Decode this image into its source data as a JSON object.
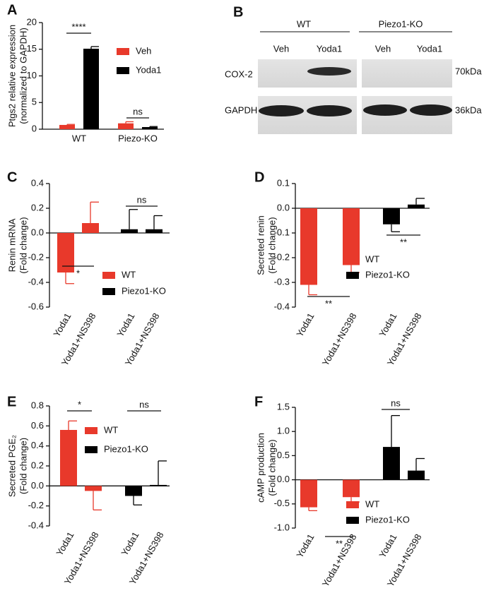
{
  "chart_data": [
    {
      "type": "bar",
      "label": "A",
      "ylabel": [
        "Ptgs2 relative expression",
        "(normalized to GAPDH)"
      ],
      "categories": [
        "WT",
        "Piezo-KO"
      ],
      "series": [
        {
          "name": "Veh",
          "color": "#e8392b",
          "values": [
            0.8,
            1.1
          ],
          "errors": [
            0.1,
            0.3
          ]
        },
        {
          "name": "Yoda1",
          "color": "#000000",
          "values": [
            15.1,
            0.4
          ],
          "errors": [
            0.4,
            0.1
          ]
        }
      ],
      "ylim": [
        0,
        20
      ],
      "yticks": [
        0,
        5,
        10,
        15,
        20
      ],
      "annotations": [
        "****",
        "ns"
      ],
      "legend": "right"
    },
    {
      "type": "bar",
      "label": "C",
      "ylabel": [
        "Renin mRNA",
        "(Fold change)"
      ],
      "categories": [
        "Yoda1",
        "Yoda1+NS398",
        "Yoda1",
        "Yoda1+NS398"
      ],
      "series": [
        {
          "name": "WT",
          "color": "#e8392b",
          "values": [
            -0.32,
            0.08,
            null,
            null
          ],
          "errors": [
            0.09,
            0.17,
            null,
            null
          ]
        },
        {
          "name": "Piezo1-KO",
          "color": "#000000",
          "values": [
            null,
            null,
            0.03,
            0.03
          ],
          "errors": [
            null,
            null,
            0.16,
            0.11
          ]
        }
      ],
      "ylim": [
        -0.6,
        0.4
      ],
      "yticks": [
        -0.6,
        -0.4,
        -0.2,
        {
          "value": 0,
          "label": "0.0"
        },
        0.2,
        0.4
      ],
      "annotations": [
        "*",
        "ns"
      ],
      "legend": "lower right"
    },
    {
      "type": "bar",
      "label": "D",
      "ylabel": [
        "Secreted renin",
        "(Fold change)"
      ],
      "categories": [
        "Yoda1",
        "Yoda1+NS398",
        "Yoda1",
        "Yoda1+NS398"
      ],
      "series": [
        {
          "name": "WT",
          "color": "#e8392b",
          "values": [
            -0.31,
            -0.23,
            null,
            null
          ],
          "errors": [
            0.04,
            0.03,
            null,
            null
          ]
        },
        {
          "name": "Piezo1-KO",
          "color": "#000000",
          "values": [
            null,
            null,
            -0.065,
            0.015
          ],
          "errors": [
            null,
            null,
            0.03,
            0.025
          ]
        }
      ],
      "ylim": [
        -0.4,
        0.1
      ],
      "yticks": [
        -0.4,
        -0.3,
        -0.2,
        -0.1,
        {
          "value": 0,
          "label": "0.0"
        },
        0.1
      ],
      "annotations": [
        "**",
        "**"
      ],
      "legend": "lower right"
    },
    {
      "type": "bar",
      "label": "E",
      "ylabel": [
        "Secreted PGE₂",
        "(Fold change)"
      ],
      "categories": [
        "Yoda1",
        "Yoda1+NS398",
        "Yoda1",
        "Yoda1+NS398"
      ],
      "series": [
        {
          "name": "WT",
          "color": "#e8392b",
          "values": [
            0.56,
            -0.05,
            null,
            null
          ],
          "errors": [
            0.09,
            0.19,
            null,
            null
          ]
        },
        {
          "name": "Piezo1-KO",
          "color": "#000000",
          "values": [
            null,
            null,
            -0.1,
            0.01
          ],
          "errors": [
            null,
            null,
            0.09,
            0.24
          ]
        }
      ],
      "ylim": [
        -0.4,
        0.8
      ],
      "yticks": [
        -0.4,
        -0.2,
        {
          "value": 0,
          "label": "0.0"
        },
        0.2,
        0.4,
        0.6,
        0.8
      ],
      "annotations": [
        "*",
        "ns"
      ],
      "legend": "upper center"
    },
    {
      "type": "bar",
      "label": "F",
      "ylabel": [
        "cAMP production",
        "(Fold change)"
      ],
      "categories": [
        "Yoda1",
        "Yoda1+NS398",
        "Yoda1",
        "Yoda1+NS398"
      ],
      "series": [
        {
          "name": "WT",
          "color": "#e8392b",
          "values": [
            -0.57,
            -0.36,
            null,
            null
          ],
          "errors": [
            0.07,
            0.1,
            null,
            null
          ]
        },
        {
          "name": "Piezo1-KO",
          "color": "#000000",
          "values": [
            null,
            null,
            0.68,
            0.19
          ],
          "errors": [
            null,
            null,
            0.65,
            0.25
          ]
        }
      ],
      "ylim": [
        -1.0,
        1.5
      ],
      "yticks": [
        {
          "value": -1,
          "label": "-1.0"
        },
        -0.5,
        {
          "value": 0,
          "label": "0.0"
        },
        0.5,
        {
          "value": 1,
          "label": "1.0"
        },
        1.5
      ],
      "annotations": [
        "**",
        "ns"
      ],
      "legend": "lower center"
    }
  ],
  "blot": {
    "label": "B",
    "groups": [
      "WT",
      "Piezo1-KO"
    ],
    "lanes": [
      "Veh",
      "Yoda1",
      "Veh",
      "Yoda1"
    ],
    "proteins": [
      "COX-2",
      "GAPDH"
    ],
    "sizes": [
      "70kDa",
      "36kDa"
    ]
  }
}
